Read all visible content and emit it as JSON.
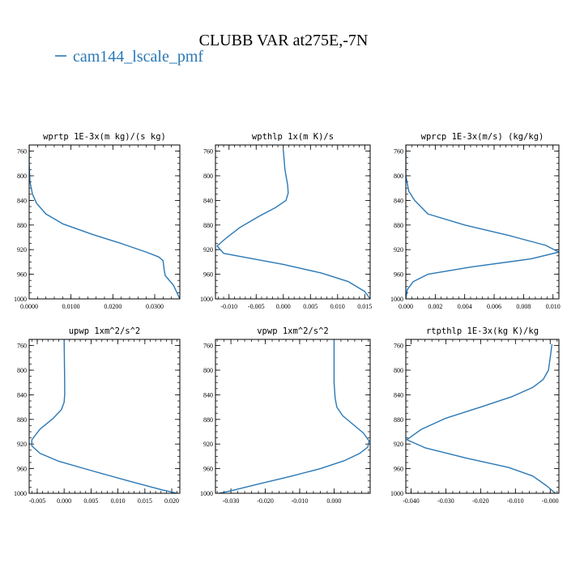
{
  "figure": {
    "title": "CLUBB VAR at275E,-7N",
    "legend_label": "cam144_lscale_pmf",
    "line_color": "#2a78b5"
  },
  "chart_data": [
    {
      "type": "line",
      "title": "wprtp  1E-3x(m kg)/(s kg)",
      "xlim": [
        0.0,
        0.036
      ],
      "ylim": [
        1000,
        750
      ],
      "xticks": [
        0.0,
        0.01,
        0.02,
        0.03
      ],
      "xtick_labels": [
        "0.0000",
        "0.0100",
        "0.0200",
        "0.0300"
      ],
      "yticks": [
        760,
        800,
        840,
        880,
        920,
        960,
        1000
      ],
      "ytick_labels": [
        "760",
        "800",
        "840",
        "880",
        "920",
        "960",
        "1000"
      ],
      "series": [
        {
          "name": "cam144_lscale_pmf",
          "x": [
            0.0,
            0.0,
            0.0002,
            0.0008,
            0.0018,
            0.004,
            0.008,
            0.015,
            0.022,
            0.028,
            0.031,
            0.032,
            0.0322,
            0.0325,
            0.0345,
            0.036
          ],
          "y": [
            750,
            780,
            810,
            830,
            845,
            862,
            878,
            895,
            910,
            924,
            932,
            938,
            950,
            962,
            978,
            1000
          ]
        }
      ]
    },
    {
      "type": "line",
      "title": "wpthlp  1x(m K)/s",
      "xlim": [
        -0.0125,
        0.016
      ],
      "ylim": [
        1000,
        750
      ],
      "xticks": [
        -0.01,
        -0.005,
        0.0,
        0.005,
        0.01,
        0.015
      ],
      "xtick_labels": [
        "-0.010",
        "-0.005",
        "0.000",
        "0.005",
        "0.010",
        "0.015"
      ],
      "yticks": [
        760,
        800,
        840,
        880,
        920,
        960,
        1000
      ],
      "ytick_labels": [
        "760",
        "800",
        "840",
        "880",
        "920",
        "960",
        "1000"
      ],
      "series": [
        {
          "name": "cam144_lscale_pmf",
          "x": [
            0.0,
            0.0003,
            0.0008,
            0.0009,
            0.0005,
            -0.0015,
            -0.0045,
            -0.008,
            -0.0105,
            -0.0122,
            -0.011,
            0.0,
            0.007,
            0.012,
            0.015,
            0.016
          ],
          "y": [
            758,
            790,
            815,
            828,
            840,
            852,
            866,
            884,
            901,
            914,
            926,
            944,
            958,
            972,
            988,
            1000
          ]
        }
      ]
    },
    {
      "type": "line",
      "title": "wprcp  1E-3x(m/s) (kg/kg)",
      "xlim": [
        0.0,
        0.0104
      ],
      "ylim": [
        1000,
        750
      ],
      "xticks": [
        0.0,
        0.002,
        0.004,
        0.006,
        0.008,
        0.01
      ],
      "xtick_labels": [
        "0.000",
        "0.002",
        "0.004",
        "0.006",
        "0.008",
        "0.010"
      ],
      "yticks": [
        760,
        800,
        840,
        880,
        920,
        960,
        1000
      ],
      "ytick_labels": [
        "760",
        "800",
        "840",
        "880",
        "920",
        "960",
        "1000"
      ],
      "series": [
        {
          "name": "cam144_lscale_pmf",
          "x": [
            0.0,
            0.0,
            0.0002,
            0.0006,
            0.0015,
            0.004,
            0.007,
            0.0095,
            0.0104,
            0.0085,
            0.0045,
            0.0015,
            0.0005,
            0.0001,
            0.0
          ],
          "y": [
            750,
            800,
            825,
            840,
            862,
            880,
            897,
            913,
            924,
            935,
            948,
            960,
            972,
            985,
            1000
          ]
        }
      ]
    },
    {
      "type": "line",
      "title": "upwp  1xm^2/s^2",
      "xlim": [
        -0.0065,
        0.0215
      ],
      "ylim": [
        1000,
        750
      ],
      "xticks": [
        -0.005,
        0.0,
        0.005,
        0.01,
        0.015,
        0.02
      ],
      "xtick_labels": [
        "-0.005",
        "0.000",
        "0.005",
        "0.010",
        "0.015",
        "0.020"
      ],
      "yticks": [
        760,
        800,
        840,
        880,
        920,
        960,
        1000
      ],
      "ytick_labels": [
        "760",
        "800",
        "840",
        "880",
        "920",
        "960",
        "1000"
      ],
      "series": [
        {
          "name": "cam144_lscale_pmf",
          "x": [
            0.0,
            0.0001,
            0.0001,
            0.0,
            -0.0005,
            -0.002,
            -0.0045,
            -0.006,
            -0.006,
            -0.0045,
            -0.001,
            0.005,
            0.012,
            0.018,
            0.021
          ],
          "y": [
            750,
            820,
            840,
            852,
            864,
            878,
            896,
            913,
            923,
            935,
            948,
            963,
            980,
            994,
            1000
          ]
        }
      ]
    },
    {
      "type": "line",
      "title": "vpwp  1xm^2/s^2",
      "xlim": [
        -0.0345,
        0.0105
      ],
      "ylim": [
        1000,
        750
      ],
      "xticks": [
        -0.03,
        -0.02,
        -0.01,
        0.0
      ],
      "xtick_labels": [
        "-0.030",
        "-0.020",
        "-0.010",
        "0.000"
      ],
      "yticks": [
        760,
        800,
        840,
        880,
        920,
        960,
        1000
      ],
      "ytick_labels": [
        "760",
        "800",
        "840",
        "880",
        "920",
        "960",
        "1000"
      ],
      "series": [
        {
          "name": "cam144_lscale_pmf",
          "x": [
            0.0,
            0.0,
            0.0003,
            0.0008,
            0.0025,
            0.0055,
            0.0085,
            0.0102,
            0.0098,
            0.0075,
            0.003,
            -0.004,
            -0.013,
            -0.022,
            -0.03,
            -0.0335
          ],
          "y": [
            750,
            820,
            845,
            860,
            874,
            888,
            902,
            915,
            925,
            935,
            947,
            960,
            973,
            985,
            996,
            1000
          ]
        }
      ]
    },
    {
      "type": "line",
      "title": "rtpthlp  1E-3x(kg K)/kg",
      "xlim": [
        -0.0415,
        0.0025
      ],
      "ylim": [
        1000,
        750
      ],
      "xticks": [
        -0.04,
        -0.03,
        -0.02,
        -0.01,
        0.0
      ],
      "xtick_labels": [
        "-0.040",
        "-0.030",
        "-0.020",
        "-0.010",
        "-0.000"
      ],
      "yticks": [
        760,
        800,
        840,
        880,
        920,
        960,
        1000
      ],
      "ytick_labels": [
        "760",
        "800",
        "840",
        "880",
        "920",
        "960",
        "1000"
      ],
      "series": [
        {
          "name": "cam144_lscale_pmf",
          "x": [
            0.0005,
            0.0,
            -0.0005,
            -0.002,
            -0.005,
            -0.011,
            -0.02,
            -0.03,
            -0.037,
            -0.0412,
            -0.036,
            -0.024,
            -0.012,
            -0.005,
            -0.001,
            0.0015
          ],
          "y": [
            758,
            780,
            800,
            815,
            828,
            843,
            860,
            878,
            896,
            913,
            926,
            943,
            958,
            972,
            988,
            1000
          ]
        }
      ]
    }
  ]
}
